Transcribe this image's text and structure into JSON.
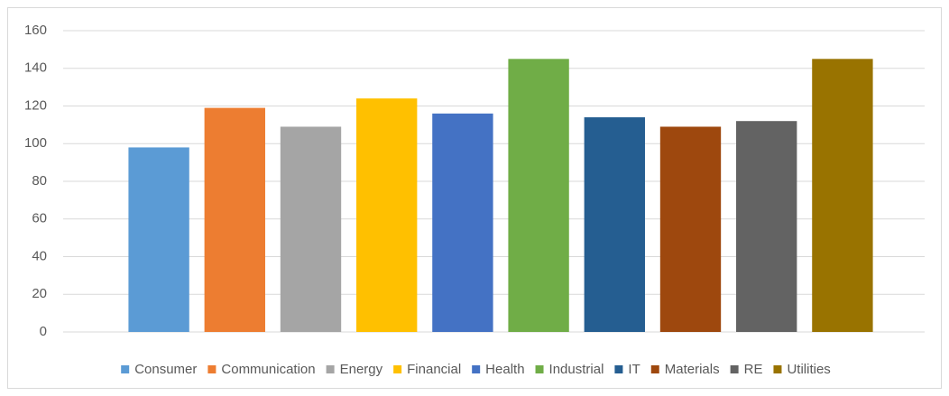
{
  "chart_data": {
    "type": "bar",
    "categories": [
      null
    ],
    "series": [
      {
        "name": "Consumer",
        "color": "#5b9bd5",
        "values": [
          98
        ]
      },
      {
        "name": "Communication",
        "color": "#ed7d31",
        "values": [
          119
        ]
      },
      {
        "name": "Energy",
        "color": "#a5a5a5",
        "values": [
          109
        ]
      },
      {
        "name": "Financial",
        "color": "#ffc000",
        "values": [
          124
        ]
      },
      {
        "name": "Health",
        "color": "#4472c4",
        "values": [
          116
        ]
      },
      {
        "name": "Industrial",
        "color": "#70ad47",
        "values": [
          145
        ]
      },
      {
        "name": "IT",
        "color": "#255e91",
        "values": [
          114
        ]
      },
      {
        "name": "Materials",
        "color": "#9e480e",
        "values": [
          109
        ]
      },
      {
        "name": "RE",
        "color": "#636363",
        "values": [
          112
        ]
      },
      {
        "name": "Utilities",
        "color": "#997300",
        "values": [
          145
        ]
      }
    ],
    "ylim": [
      0,
      160
    ],
    "yticks": [
      0,
      20,
      40,
      60,
      80,
      100,
      120,
      140,
      160
    ],
    "grid": true,
    "legend": "bottom"
  }
}
